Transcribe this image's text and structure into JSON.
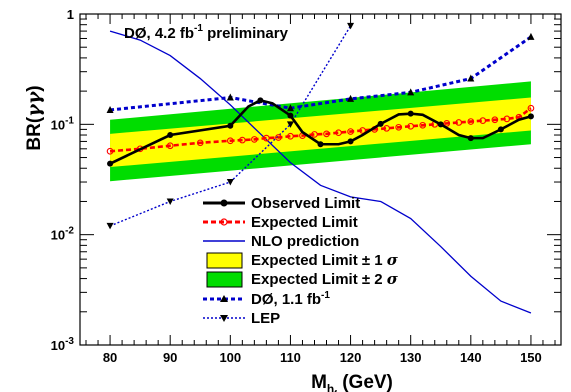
{
  "chart_data": {
    "type": "line",
    "annotation": {
      "prefix": "DØ, 4.2 fb",
      "sup": "-1",
      "suffix": " preliminary"
    },
    "xlabel": {
      "base": "M",
      "sub": "h",
      "subsub": "f",
      "unit": " (GeV)"
    },
    "ylabel": {
      "main": "BR(",
      "greek": "γγ",
      "close": ")"
    },
    "x_axis": {
      "min": 75,
      "max": 155,
      "ticks": [
        "80",
        "90",
        "100",
        "110",
        "120",
        "130",
        "140",
        "150"
      ]
    },
    "y_axis": {
      "scale": "log",
      "min": 0.001,
      "max": 1,
      "ticks": [
        {
          "base": "1",
          "exp": ""
        },
        {
          "base": "10",
          "exp": "-1"
        },
        {
          "base": "10",
          "exp": "-2"
        },
        {
          "base": "10",
          "exp": "-3"
        }
      ]
    },
    "colors": {
      "observed": "#000000",
      "expected": "#ff0000",
      "nlo": "#0000cc",
      "band1": "#ffff00",
      "band2": "#00dd00",
      "d0_old": "#0000cc",
      "lep": "#0000cc"
    },
    "band": {
      "x": [
        80,
        150
      ],
      "lo2": [
        0.0305,
        0.066
      ],
      "lo1": [
        0.041,
        0.088
      ],
      "hi1": [
        0.082,
        0.175
      ],
      "hi2": [
        0.11,
        0.245
      ]
    },
    "series": [
      {
        "name": "Observed Limit",
        "x": [
          80,
          90,
          100,
          103,
          105,
          107,
          110,
          112,
          115,
          118,
          120,
          122,
          125,
          128,
          130,
          132,
          135,
          138,
          140,
          142,
          145,
          148,
          150
        ],
        "y": [
          0.044,
          0.08,
          0.097,
          0.145,
          0.165,
          0.155,
          0.12,
          0.085,
          0.066,
          0.066,
          0.07,
          0.08,
          0.101,
          0.123,
          0.125,
          0.122,
          0.1,
          0.08,
          0.075,
          0.075,
          0.09,
          0.11,
          0.118
        ]
      },
      {
        "name": "Expected Limit",
        "x": [
          80,
          85,
          90,
          95,
          100,
          102,
          104,
          106,
          108,
          110,
          112,
          114,
          116,
          118,
          120,
          122,
          124,
          126,
          128,
          130,
          132,
          134,
          136,
          138,
          140,
          142,
          144,
          146,
          148,
          150
        ],
        "y": [
          0.057,
          0.06,
          0.064,
          0.068,
          0.071,
          0.072,
          0.073,
          0.075,
          0.076,
          0.078,
          0.079,
          0.081,
          0.082,
          0.084,
          0.086,
          0.088,
          0.09,
          0.092,
          0.094,
          0.096,
          0.098,
          0.1,
          0.102,
          0.104,
          0.106,
          0.108,
          0.11,
          0.112,
          0.116,
          0.14
        ]
      },
      {
        "name": "NLO prediction",
        "x": [
          80,
          85,
          90,
          95,
          100,
          105,
          110,
          115,
          120,
          125,
          130,
          135,
          140,
          145,
          150
        ],
        "y": [
          0.7,
          0.58,
          0.42,
          0.26,
          0.15,
          0.082,
          0.045,
          0.028,
          0.022,
          0.02,
          0.014,
          0.0078,
          0.0042,
          0.0025,
          0.00195
        ]
      },
      {
        "name": "Expected Limit ± 1 σ",
        "legend_text": "Expected Limit ± 1 ",
        "legend_greek": "σ"
      },
      {
        "name": "Expected Limit ± 2 σ",
        "legend_text": "Expected Limit ± 2 ",
        "legend_greek": "σ"
      },
      {
        "name": "DØ, 1.1 fb-1",
        "legend_text": "DØ, 1.1 fb",
        "legend_sup": "-1",
        "x": [
          80,
          100,
          110,
          120,
          130,
          140,
          150
        ],
        "y": [
          0.135,
          0.175,
          0.14,
          0.17,
          0.195,
          0.26,
          0.62
        ]
      },
      {
        "name": "LEP",
        "x": [
          80,
          90,
          100,
          110,
          120
        ],
        "y": [
          0.012,
          0.02,
          0.03,
          0.1,
          0.78
        ]
      }
    ]
  }
}
